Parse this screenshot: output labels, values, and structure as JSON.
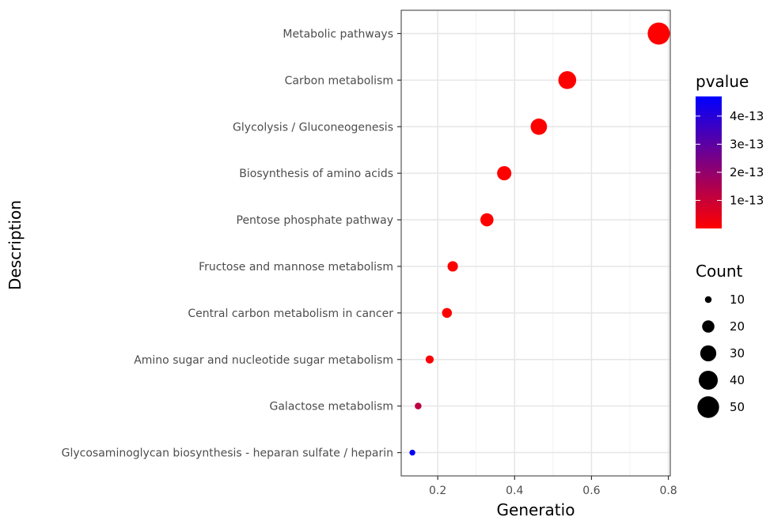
{
  "chart_data": {
    "type": "scatter",
    "xlabel": "Generatio",
    "ylabel": "Description",
    "xlim": [
      0.105,
      0.805
    ],
    "x_ticks": [
      {
        "value": 0.2,
        "label": "0.2"
      },
      {
        "value": 0.4,
        "label": "0.4"
      },
      {
        "value": 0.6,
        "label": "0.6"
      },
      {
        "value": 0.8,
        "label": "0.8"
      }
    ],
    "grid": true,
    "categories": [
      "Metabolic pathways",
      "Carbon metabolism",
      "Glycolysis / Gluconeogenesis",
      "Biosynthesis of amino acids",
      "Pentose phosphate pathway",
      "Fructose and mannose metabolism",
      "Central carbon metabolism in cancer",
      "Amino sugar and nucleotide sugar metabolism",
      "Galactose metabolism",
      "Glycosaminoglycan biosynthesis - heparan sulfate / heparin"
    ],
    "points": [
      {
        "description": "Metabolic pathways",
        "generatio": 0.775,
        "count": 52,
        "pvalue": 1e-20
      },
      {
        "description": "Carbon metabolism",
        "generatio": 0.537,
        "count": 36,
        "pvalue": 1e-20
      },
      {
        "description": "Glycolysis / Gluconeogenesis",
        "generatio": 0.463,
        "count": 31,
        "pvalue": 1e-20
      },
      {
        "description": "Biosynthesis of amino acids",
        "generatio": 0.373,
        "count": 25,
        "pvalue": 1e-19
      },
      {
        "description": "Pentose phosphate pathway",
        "generatio": 0.328,
        "count": 22,
        "pvalue": 1e-18
      },
      {
        "description": "Fructose and mannose metabolism",
        "generatio": 0.239,
        "count": 16,
        "pvalue": 2e-16
      },
      {
        "description": "Central carbon metabolism in cancer",
        "generatio": 0.224,
        "count": 15,
        "pvalue": 5e-16
      },
      {
        "description": "Amino sugar and nucleotide sugar metabolism",
        "generatio": 0.179,
        "count": 12,
        "pvalue": 8e-15
      },
      {
        "description": "Galactose metabolism",
        "generatio": 0.149,
        "count": 10,
        "pvalue": 1.2e-13
      },
      {
        "description": "Glycosaminoglycan biosynthesis - heparan sulfate / heparin",
        "generatio": 0.134,
        "count": 9,
        "pvalue": 4.6e-13
      }
    ],
    "color_legend": {
      "title": "pvalue",
      "low_color": "#ff0000",
      "high_color": "#0000ff",
      "range": [
        0,
        4.7e-13
      ],
      "ticks": [
        {
          "value": 4e-13,
          "label": "4e-13"
        },
        {
          "value": 3e-13,
          "label": "3e-13"
        },
        {
          "value": 2e-13,
          "label": "2e-13"
        },
        {
          "value": 1e-13,
          "label": "1e-13"
        }
      ]
    },
    "size_legend": {
      "title": "Count",
      "range": [
        9,
        52
      ],
      "entries": [
        {
          "value": 10,
          "label": "10"
        },
        {
          "value": 20,
          "label": "20"
        },
        {
          "value": 30,
          "label": "30"
        },
        {
          "value": 40,
          "label": "40"
        },
        {
          "value": 50,
          "label": "50"
        }
      ]
    },
    "legend_position": "right"
  }
}
